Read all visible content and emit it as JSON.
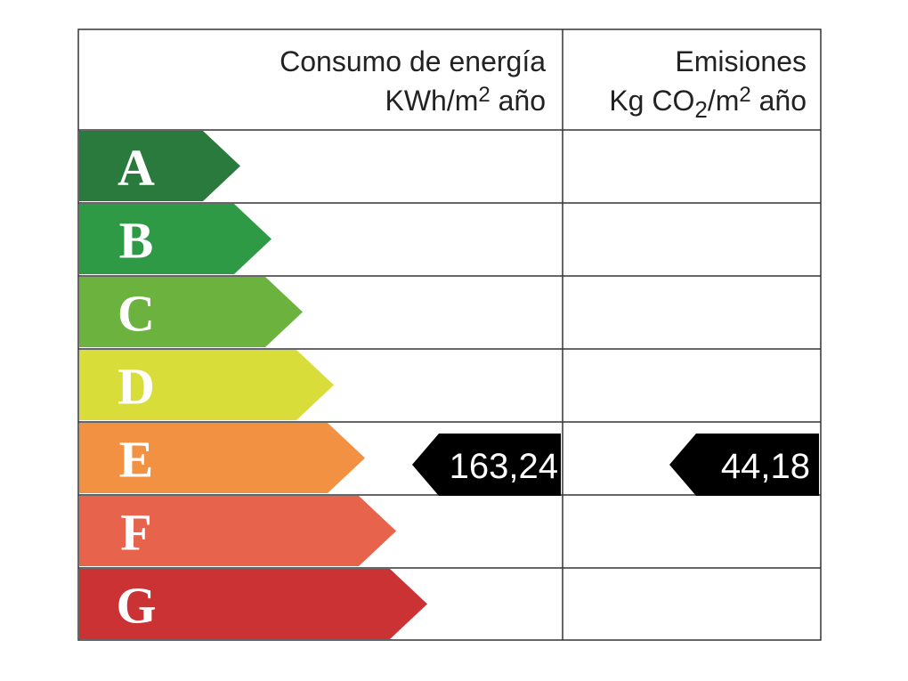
{
  "header": {
    "energy": {
      "title": "Consumo de energía",
      "unit": [
        "KWh/m",
        "2",
        " año"
      ]
    },
    "emissions": {
      "title": "Emisiones",
      "unit": [
        "Kg CO",
        "2",
        "/m",
        "2",
        " año"
      ]
    }
  },
  "rows": [
    {
      "letter": "A",
      "color": "#2a7a3e"
    },
    {
      "letter": "B",
      "color": "#2f9a46"
    },
    {
      "letter": "C",
      "color": "#6cb23f"
    },
    {
      "letter": "D",
      "color": "#d8dd3a"
    },
    {
      "letter": "E",
      "color": "#f29142"
    },
    {
      "letter": "F",
      "color": "#e8634b"
    },
    {
      "letter": "G",
      "color": "#cb3234"
    }
  ],
  "ratings": {
    "energy": "163,24",
    "emissions": "44,18"
  }
}
